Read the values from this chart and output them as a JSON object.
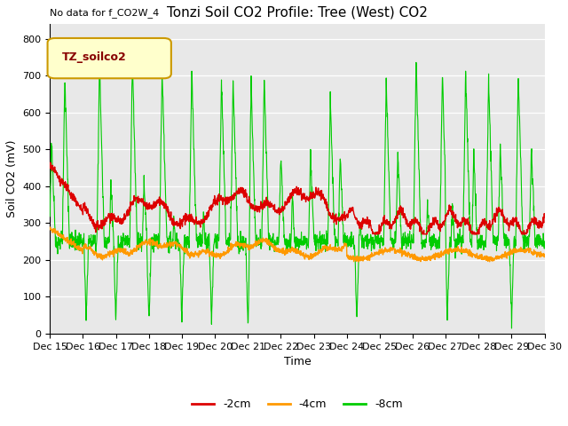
{
  "title": "Tonzi Soil CO2 Profile: Tree (West) CO2",
  "no_data_label": "No data for f_CO2W_4",
  "xlabel": "Time",
  "ylabel": "Soil CO2 (mV)",
  "ylim": [
    0,
    840
  ],
  "yticks": [
    0,
    100,
    200,
    300,
    400,
    500,
    600,
    700,
    800
  ],
  "x_tick_labels": [
    "Dec 15",
    "Dec 16",
    "Dec 17",
    "Dec 18",
    "Dec 19",
    "Dec 20",
    "Dec 21",
    "Dec 22",
    "Dec 23",
    "Dec 24",
    "Dec 25",
    "Dec 26",
    "Dec 27",
    "Dec 28",
    "Dec 29",
    "Dec 30"
  ],
  "legend_label": "TZ_soilco2",
  "line_labels": [
    "-2cm",
    "-4cm",
    "-8cm"
  ],
  "line_colors": [
    "#dd0000",
    "#ff9900",
    "#00cc00"
  ],
  "background_color": "#e8e8e8",
  "fig_background": "#ffffff",
  "title_fontsize": 11,
  "axis_fontsize": 9,
  "tick_fontsize": 8,
  "nodata_fontsize": 8
}
